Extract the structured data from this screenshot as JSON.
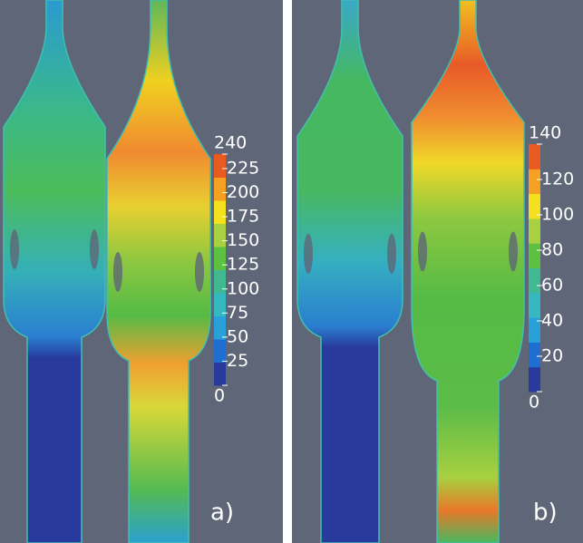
{
  "panels": [
    {
      "label": "a)",
      "colorbar_ticks": [
        0,
        25,
        50,
        75,
        100,
        125,
        150,
        175,
        200,
        225,
        240
      ]
    },
    {
      "label": "b)",
      "colorbar_ticks": [
        0,
        20,
        40,
        60,
        80,
        100,
        120,
        140
      ]
    }
  ]
}
